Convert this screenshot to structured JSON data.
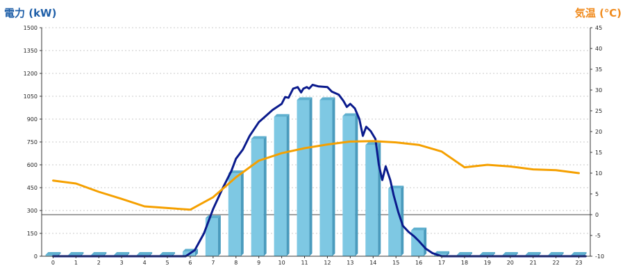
{
  "chart_data": {
    "type": "bar+line",
    "left_axis": {
      "label": "電力 (kW)",
      "ylim": [
        0,
        1500
      ],
      "ticks": [
        0,
        150,
        300,
        450,
        600,
        750,
        900,
        1050,
        1200,
        1350,
        1500
      ],
      "color": "#1f5fa8"
    },
    "right_axis": {
      "label": "気温 (℃)",
      "ylim": [
        -10,
        45
      ],
      "ticks": [
        -10,
        -5,
        0,
        5,
        10,
        15,
        20,
        25,
        30,
        35,
        40,
        45
      ],
      "color": "#f08a1c"
    },
    "categories": [
      "0",
      "1",
      "2",
      "3",
      "4",
      "5",
      "6",
      "7",
      "8",
      "9",
      "10",
      "11",
      "12",
      "13",
      "14",
      "15",
      "16",
      "17",
      "18",
      "19",
      "20",
      "21",
      "22",
      "23"
    ],
    "grid": true,
    "series": [
      {
        "kind": "bar",
        "axis": "left",
        "color": "#7ec8e3",
        "values": [
          0,
          0,
          0,
          0,
          0,
          0,
          30,
          250,
          545,
          770,
          915,
          1025,
          1025,
          920,
          730,
          445,
          170,
          15,
          0,
          0,
          0,
          0,
          0,
          0
        ]
      },
      {
        "kind": "line",
        "axis": "left",
        "color": "#0a1a8c",
        "points": [
          [
            0,
            0
          ],
          [
            5.8,
            0
          ],
          [
            6.2,
            40
          ],
          [
            6.6,
            150
          ],
          [
            7,
            310
          ],
          [
            7.4,
            440
          ],
          [
            7.8,
            560
          ],
          [
            8,
            640
          ],
          [
            8.3,
            700
          ],
          [
            8.6,
            790
          ],
          [
            9,
            880
          ],
          [
            9.3,
            920
          ],
          [
            9.6,
            960
          ],
          [
            10,
            1000
          ],
          [
            10.15,
            1045
          ],
          [
            10.3,
            1040
          ],
          [
            10.5,
            1100
          ],
          [
            10.7,
            1110
          ],
          [
            10.85,
            1075
          ],
          [
            10.95,
            1100
          ],
          [
            11.1,
            1110
          ],
          [
            11.2,
            1100
          ],
          [
            11.35,
            1125
          ],
          [
            11.6,
            1115
          ],
          [
            12,
            1110
          ],
          [
            12.2,
            1080
          ],
          [
            12.5,
            1060
          ],
          [
            12.7,
            1020
          ],
          [
            12.85,
            980
          ],
          [
            13,
            1000
          ],
          [
            13.2,
            970
          ],
          [
            13.4,
            900
          ],
          [
            13.55,
            790
          ],
          [
            13.7,
            850
          ],
          [
            13.9,
            820
          ],
          [
            14.1,
            770
          ],
          [
            14.25,
            600
          ],
          [
            14.4,
            500
          ],
          [
            14.55,
            590
          ],
          [
            14.75,
            500
          ],
          [
            14.9,
            400
          ],
          [
            15.1,
            290
          ],
          [
            15.3,
            200
          ],
          [
            15.55,
            160
          ],
          [
            15.8,
            130
          ],
          [
            16,
            100
          ],
          [
            16.3,
            50
          ],
          [
            16.6,
            20
          ],
          [
            17,
            0
          ],
          [
            23.3,
            0
          ]
        ]
      },
      {
        "kind": "line",
        "axis": "right",
        "color": "#f5a000",
        "points": [
          [
            0,
            8.2
          ],
          [
            1,
            7.5
          ],
          [
            2,
            5.5
          ],
          [
            3,
            3.8
          ],
          [
            4,
            2.0
          ],
          [
            5,
            1.6
          ],
          [
            6,
            1.2
          ],
          [
            7,
            4.2
          ],
          [
            8,
            9.0
          ],
          [
            9,
            13.0
          ],
          [
            10,
            14.8
          ],
          [
            11,
            16.0
          ],
          [
            12,
            16.9
          ],
          [
            13,
            17.6
          ],
          [
            14,
            17.7
          ],
          [
            15,
            17.4
          ],
          [
            16,
            16.8
          ],
          [
            17,
            15.2
          ],
          [
            18,
            11.4
          ],
          [
            19,
            12.0
          ],
          [
            20,
            11.6
          ],
          [
            21,
            10.9
          ],
          [
            22,
            10.7
          ],
          [
            23,
            10.0
          ]
        ]
      }
    ]
  }
}
